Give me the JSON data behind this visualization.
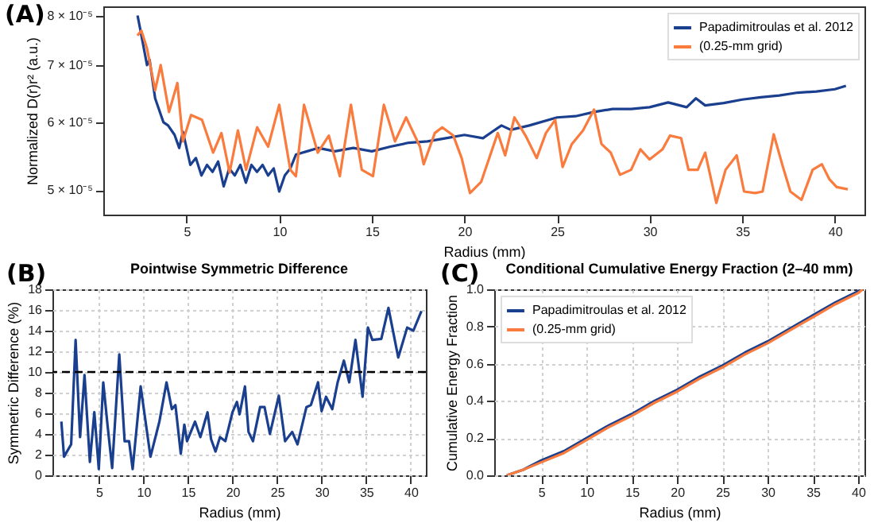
{
  "chart_data": [
    {
      "type": "line",
      "xlabel": "Radius (mm)",
      "ylabel": "Normalized D(r)r² (a.u.)",
      "annotations": [
        "(A)"
      ],
      "log": "y",
      "grid": false,
      "legend": "top right",
      "xlim": [
        0.5,
        41.6
      ],
      "xticks": [
        5,
        10,
        15,
        20,
        25,
        30,
        35,
        40
      ],
      "ylim": [
        4.68e-05,
        8.2e-05
      ],
      "yticks": [
        {
          "value": 5e-05,
          "label": "5 × 10⁻⁵"
        },
        {
          "value": 6e-05,
          "label": "6 × 10⁻⁵"
        },
        {
          "value": 7e-05,
          "label": "7 × 10⁻⁵"
        },
        {
          "value": 8e-05,
          "label": "8 × 10⁻⁵"
        }
      ],
      "series": [
        {
          "name": "Papadimitroulas et al. 2012",
          "color": "#1a3f8f",
          "x": [
            2.35,
            2.5,
            2.86,
            3.0,
            3.3,
            3.75,
            4.0,
            4.35,
            4.6,
            4.8,
            5.2,
            5.5,
            5.8,
            6.1,
            6.4,
            6.7,
            7.0,
            7.3,
            7.6,
            7.9,
            8.2,
            8.5,
            8.8,
            9.1,
            9.4,
            9.7,
            10.0,
            10.3,
            10.6,
            10.9,
            11.5,
            12.1,
            13,
            14,
            15,
            16,
            17,
            18,
            19,
            20,
            21,
            21.5,
            22,
            22.5,
            23.5,
            25,
            26,
            27,
            28,
            29,
            30,
            31,
            32,
            32.5,
            33,
            34,
            35,
            36,
            37,
            38,
            39,
            40,
            40.6
          ],
          "values": [
            8e-05,
            7.7e-05,
            7e-05,
            7.1e-05,
            6.4e-05,
            6e-05,
            5.95e-05,
            5.8e-05,
            5.6e-05,
            5.85e-05,
            5.35e-05,
            5.45e-05,
            5.2e-05,
            5.35e-05,
            5.25e-05,
            5.4e-05,
            5.05e-05,
            5.3e-05,
            5.2e-05,
            5.35e-05,
            5.1e-05,
            5.35e-05,
            5.25e-05,
            5.35e-05,
            5.2e-05,
            5.3e-05,
            4.98e-05,
            5.2e-05,
            5.3e-05,
            5.5e-05,
            5.55e-05,
            5.6e-05,
            5.55e-05,
            5.6e-05,
            5.55e-05,
            5.62e-05,
            5.68e-05,
            5.7e-05,
            5.75e-05,
            5.8e-05,
            5.75e-05,
            5.85e-05,
            5.95e-05,
            5.88e-05,
            5.95e-05,
            6.08e-05,
            6.1e-05,
            6.17e-05,
            6.22e-05,
            6.22e-05,
            6.25e-05,
            6.33e-05,
            6.25e-05,
            6.4e-05,
            6.28e-05,
            6.32e-05,
            6.38e-05,
            6.42e-05,
            6.45e-05,
            6.5e-05,
            6.52e-05,
            6.56e-05,
            6.62e-05
          ]
        },
        {
          "name": "(0.25-mm grid)",
          "color": "#f97b3d",
          "x": [
            2.34,
            2.56,
            2.86,
            3.3,
            3.6,
            4.05,
            4.5,
            4.8,
            5.24,
            5.83,
            6.43,
            6.88,
            7.32,
            7.77,
            8.21,
            8.81,
            9.4,
            10.0,
            10.6,
            10.9,
            11.34,
            12.08,
            12.68,
            13.27,
            13.87,
            14.46,
            15.06,
            15.65,
            16.25,
            16.85,
            17.6,
            17.8,
            18.4,
            18.8,
            19.4,
            19.85,
            20.3,
            20.9,
            21.8,
            22.2,
            22.7,
            23.3,
            23.9,
            24.4,
            24.9,
            25.3,
            25.8,
            26.4,
            27.0,
            27.4,
            27.9,
            28.4,
            29.0,
            29.5,
            30.0,
            30.7,
            31.1,
            31.7,
            32.1,
            32.6,
            33.0,
            33.6,
            34.1,
            34.7,
            35.1,
            35.7,
            36.1,
            36.7,
            37.2,
            37.6,
            38.2,
            38.8,
            39.3,
            39.7,
            40.1,
            40.7
          ],
          "values": [
            7.58e-05,
            7.68e-05,
            7.32e-05,
            6.54e-05,
            7e-05,
            6.17e-05,
            6.67e-05,
            5.7e-05,
            6.12e-05,
            6.04e-05,
            5.53e-05,
            5.83e-05,
            5.24e-05,
            5.87e-05,
            5.28e-05,
            5.92e-05,
            5.62e-05,
            6.29e-05,
            5.28e-05,
            5.19e-05,
            6.29e-05,
            5.53e-05,
            5.79e-05,
            5.19e-05,
            6.29e-05,
            5.28e-05,
            5.19e-05,
            6.29e-05,
            5.7e-05,
            6.08e-05,
            5.62e-05,
            5.36e-05,
            5.83e-05,
            5.92e-05,
            5.79e-05,
            5.45e-05,
            4.96e-05,
            5.11e-05,
            5.83e-05,
            5.49e-05,
            6.08e-05,
            5.79e-05,
            5.45e-05,
            5.83e-05,
            6.04e-05,
            5.32e-05,
            5.66e-05,
            5.87e-05,
            6.21e-05,
            5.66e-05,
            5.53e-05,
            5.21e-05,
            5.28e-05,
            5.58e-05,
            5.43e-05,
            5.58e-05,
            5.79e-05,
            5.75e-05,
            5.28e-05,
            5.28e-05,
            5.53e-05,
            4.83e-05,
            5.28e-05,
            5.49e-05,
            4.98e-05,
            4.96e-05,
            4.98e-05,
            5.81e-05,
            5.32e-05,
            4.98e-05,
            4.87e-05,
            5.28e-05,
            5.36e-05,
            5.15e-05,
            5.04e-05,
            5.01e-05
          ]
        }
      ]
    },
    {
      "type": "line",
      "title": "Pointwise Symmetric Difference",
      "xlabel": "Radius (mm)",
      "ylabel": "Symmetric Difference (%)",
      "annotations": [
        "(B)"
      ],
      "grid": true,
      "xlim": [
        -0.2,
        41.7
      ],
      "xticks": [
        5,
        10,
        15,
        20,
        25,
        30,
        35,
        40
      ],
      "ylim": [
        0,
        18
      ],
      "yticks": [
        0,
        2,
        4,
        6,
        8,
        10,
        12,
        14,
        16,
        18
      ],
      "ref_lines": [
        {
          "axis": "y",
          "value": 10,
          "color": "#000000",
          "line_style": "dashed"
        }
      ],
      "series": [
        {
          "color": "#1a3f8f",
          "x": [
            0.8,
            1.1,
            1.9,
            2.4,
            2.9,
            3.4,
            4.0,
            4.5,
            5.0,
            5.5,
            6.0,
            6.5,
            7.3,
            7.9,
            8.4,
            8.8,
            9.7,
            10.8,
            11.8,
            12.6,
            13.2,
            13.6,
            14.2,
            14.6,
            14.9,
            15.8,
            16.4,
            17.2,
            17.6,
            18.1,
            18.6,
            19.2,
            20.0,
            20.5,
            20.8,
            21.4,
            21.8,
            22.3,
            23.1,
            23.6,
            24.2,
            25.2,
            25.9,
            26.7,
            27.3,
            28.3,
            28.8,
            29.6,
            30.0,
            30.5,
            31.2,
            31.8,
            32.5,
            33.1,
            33.8,
            34.6,
            35.2,
            35.7,
            36.7,
            37.5,
            38.6,
            39.6,
            40.3,
            41.2
          ],
          "values": [
            5.2,
            1.8,
            3.0,
            13.1,
            3.7,
            9.7,
            1.3,
            6.1,
            0.6,
            9.0,
            4.7,
            0.7,
            11.7,
            3.3,
            3.3,
            0.6,
            8.6,
            1.8,
            5.2,
            9.0,
            6.4,
            6.8,
            2.1,
            4.9,
            3.3,
            5.2,
            3.7,
            6.1,
            3.5,
            2.3,
            3.7,
            3.3,
            6.1,
            7.1,
            5.9,
            8.6,
            4.2,
            3.3,
            6.6,
            6.6,
            4.0,
            7.7,
            3.3,
            4.2,
            3.0,
            6.6,
            6.8,
            9.0,
            6.2,
            7.6,
            6.4,
            9.0,
            11.1,
            9.0,
            13.1,
            7.6,
            14.3,
            13.1,
            13.2,
            16.2,
            11.4,
            14.3,
            14.0,
            15.9
          ]
        }
      ]
    },
    {
      "type": "line",
      "title": "Conditional Cumulative Energy Fraction (2–40 mm)",
      "xlabel": "Radius (mm)",
      "ylabel": "Cumulative Energy Fraction",
      "annotations": [
        "(C)"
      ],
      "grid": true,
      "legend": "top left",
      "xlim": [
        -0.2,
        40.7
      ],
      "xticks": [
        5,
        10,
        15,
        20,
        25,
        30,
        35,
        40
      ],
      "ylim": [
        0,
        1
      ],
      "yticks": [
        {
          "value": 0,
          "label": "0.0"
        },
        0.2,
        0.4,
        0.6,
        0.8,
        {
          "value": 1,
          "label": "1.0"
        }
      ],
      "x": [
        1.2,
        3,
        5,
        7.5,
        10,
        12.5,
        15,
        17.5,
        20,
        22.5,
        25,
        27.5,
        30,
        32.5,
        35,
        37.5,
        40,
        40.5
      ],
      "series": [
        {
          "name": "Papadimitroulas et al. 2012",
          "color": "#1a3f8f",
          "values": [
            0,
            0.03,
            0.08,
            0.13,
            0.2,
            0.27,
            0.33,
            0.4,
            0.46,
            0.53,
            0.59,
            0.66,
            0.72,
            0.79,
            0.86,
            0.93,
            0.99,
            1.0
          ]
        },
        {
          "name": "(0.25-mm grid)",
          "color": "#f97b3d",
          "values": [
            0,
            0.03,
            0.07,
            0.12,
            0.19,
            0.26,
            0.32,
            0.39,
            0.45,
            0.52,
            0.58,
            0.65,
            0.71,
            0.78,
            0.85,
            0.92,
            0.98,
            1.0
          ]
        }
      ]
    }
  ]
}
